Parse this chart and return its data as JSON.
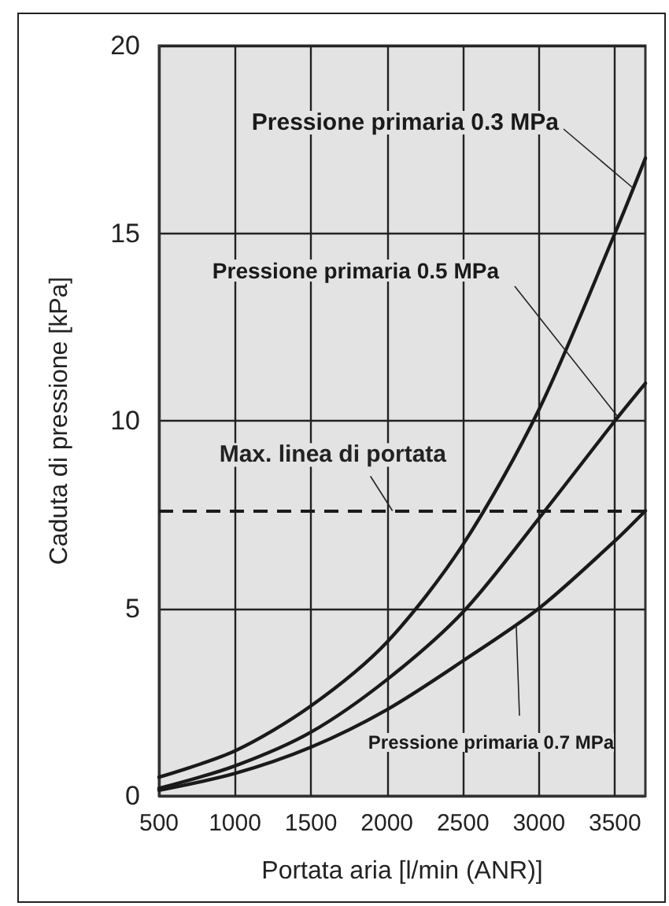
{
  "chart_data": {
    "type": "line",
    "xlabel": "Portata aria [l/min (ANR)]",
    "ylabel": "Caduta di pressione [kPa]",
    "x": [
      500,
      1000,
      1500,
      2000,
      2500,
      3000,
      3500,
      3700
    ],
    "series": [
      {
        "name": "Pressione primaria 0.3 MPa",
        "color": "#1a1a1a",
        "values": [
          0.5,
          1.2,
          2.4,
          4.1,
          6.7,
          10.3,
          15.0,
          17.0
        ]
      },
      {
        "name": "Pressione primaria 0.5 MPa",
        "color": "#1a1a1a",
        "values": [
          0.2,
          0.8,
          1.7,
          3.1,
          4.9,
          7.4,
          10.0,
          11.0
        ]
      },
      {
        "name": "Pressione primaria 0.7 MPa",
        "color": "#1a1a1a",
        "values": [
          0.15,
          0.6,
          1.3,
          2.3,
          3.6,
          5.0,
          6.8,
          7.6
        ]
      }
    ],
    "xlim": [
      500,
      3700
    ],
    "xticks": [
      500,
      1000,
      1500,
      2000,
      2500,
      3000,
      3500
    ],
    "ylim": [
      0,
      20
    ],
    "yticks": [
      0,
      5,
      10,
      15,
      20
    ],
    "ref_lines": [
      {
        "axis": "y",
        "value": 7.6,
        "label": "Max. linea di portata",
        "color": "#1a1a1a",
        "line_style": "dashed"
      }
    ],
    "grid": true,
    "legend": false,
    "marker": "none",
    "line_style": "solid"
  }
}
